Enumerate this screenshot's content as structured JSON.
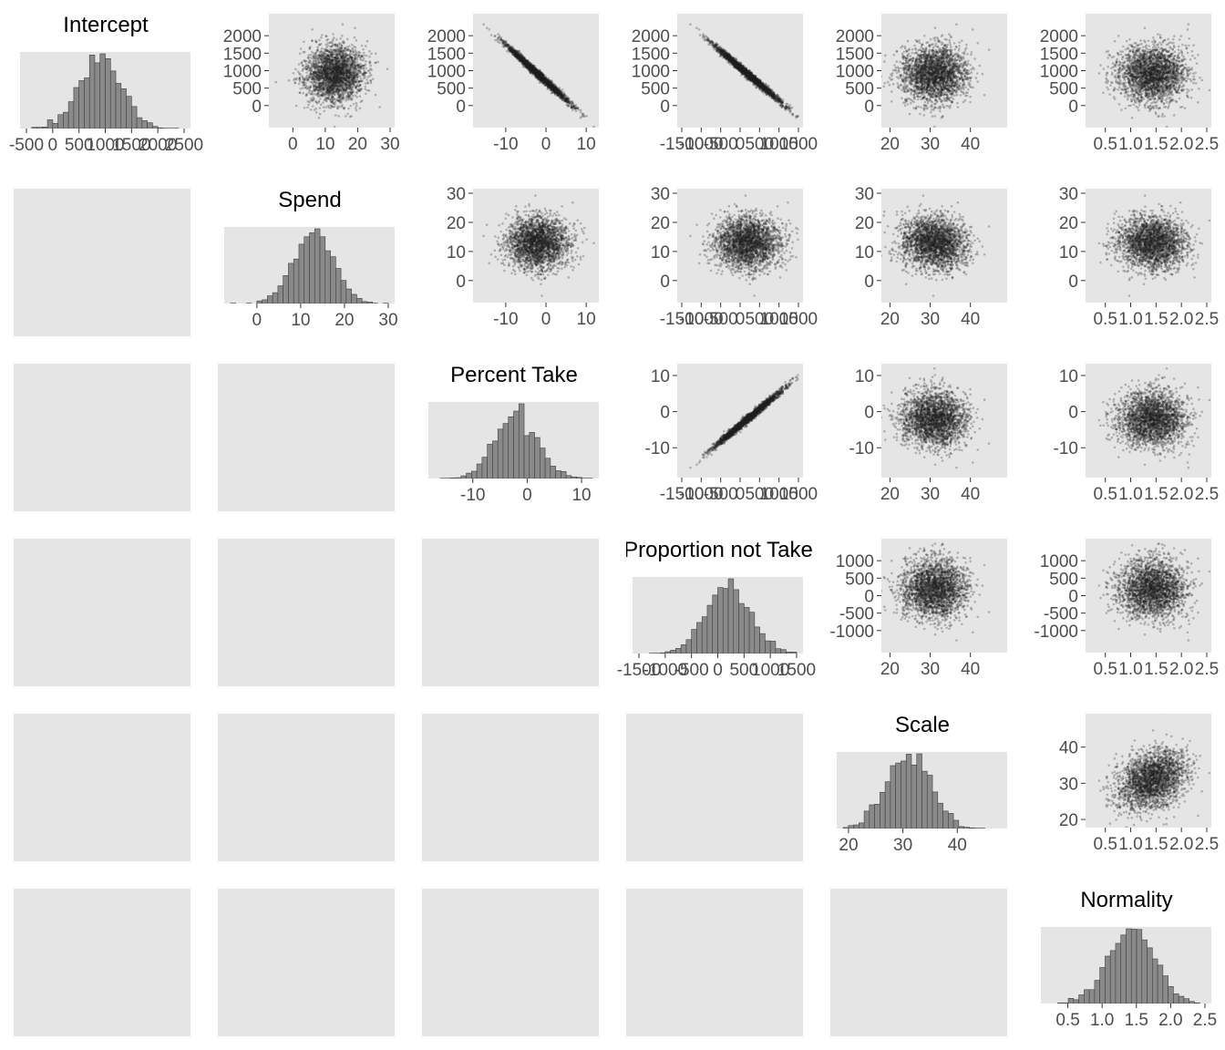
{
  "colors": {
    "panel_bg": "#e5e5e5",
    "bar_fill": "#8a8a8a",
    "bar_stroke": "#404040",
    "point": "#202020",
    "tick_text": "#4d4d4d",
    "title_text": "#000000"
  },
  "chart_data": {
    "type": "pairs-matrix",
    "variables": [
      {
        "key": "intercept",
        "title": "Intercept",
        "mean": 900,
        "sd": 400,
        "range": [
          -500,
          2500
        ],
        "ticks": [
          -500,
          0,
          500,
          1000,
          1500,
          2000,
          2500
        ],
        "tick_labels": [
          "-500",
          "0",
          "500",
          "1000",
          "1500",
          "2000",
          "2500"
        ],
        "scatter_ticks": [
          0,
          500,
          1000,
          1500,
          2000
        ],
        "scatter_tick_labels": [
          "0",
          "500",
          "1000",
          "1500",
          "2000"
        ]
      },
      {
        "key": "spend",
        "title": "Spend",
        "mean": 13,
        "sd": 4.5,
        "range": [
          -6,
          30
        ],
        "ticks": [
          0,
          10,
          20,
          30
        ],
        "tick_labels": [
          "0",
          "10",
          "20",
          "30"
        ],
        "scatter_ticks": [
          0,
          10,
          20,
          30
        ],
        "scatter_tick_labels": [
          "0",
          "10",
          "20",
          "30"
        ]
      },
      {
        "key": "percent_take",
        "title": "Percent Take",
        "mean": -2,
        "sd": 3.8,
        "range": [
          -17,
          12
        ],
        "ticks": [
          -10,
          0,
          10
        ],
        "tick_labels": [
          "-10",
          "0",
          "10"
        ],
        "scatter_ticks": [
          -10,
          0,
          10
        ],
        "scatter_tick_labels": [
          "-10",
          "0",
          "10"
        ]
      },
      {
        "key": "proportion_not_take",
        "title": "Proportion not Take",
        "mean": 200,
        "sd": 420,
        "range": [
          -1500,
          1500
        ],
        "ticks": [
          -1500,
          -1000,
          -500,
          0,
          500,
          1000,
          1500
        ],
        "tick_labels": [
          "-1500",
          "-1000",
          "-500",
          "0",
          "500",
          "1000",
          "1500"
        ],
        "scatter_ticks": [
          -1000,
          -500,
          0,
          500,
          1000
        ],
        "scatter_tick_labels": [
          "-1000",
          "-500",
          "0",
          "500",
          "1000"
        ]
      },
      {
        "key": "scale",
        "title": "Scale",
        "mean": 31,
        "sd": 4,
        "range": [
          19,
          48
        ],
        "ticks": [
          20,
          30,
          40
        ],
        "tick_labels": [
          "20",
          "30",
          "40"
        ],
        "scatter_ticks": [
          20,
          30,
          40
        ],
        "scatter_tick_labels": [
          "20",
          "30",
          "40"
        ]
      },
      {
        "key": "normality",
        "title": "Normality",
        "mean": 1.42,
        "sd": 0.33,
        "range": [
          0.2,
          2.5
        ],
        "ticks": [
          0.5,
          1.0,
          1.5,
          2.0,
          2.5
        ],
        "tick_labels": [
          "0.5",
          "1.0",
          "1.5",
          "2.0",
          "2.5"
        ],
        "scatter_ticks": [
          0.5,
          1.0,
          1.5,
          2.0
        ],
        "scatter_tick_labels": [
          "0.5",
          "1.0",
          "1.5",
          "2.0"
        ]
      }
    ],
    "correlations": [
      [
        1.0,
        0.05,
        -0.99,
        -0.99,
        0.05,
        0.0
      ],
      [
        0.05,
        1.0,
        0.0,
        0.0,
        -0.1,
        -0.05
      ],
      [
        -0.99,
        0.0,
        1.0,
        0.99,
        -0.05,
        0.0
      ],
      [
        -0.99,
        0.0,
        0.99,
        1.0,
        0.0,
        0.0
      ],
      [
        0.05,
        -0.1,
        -0.05,
        0.0,
        1.0,
        0.3
      ],
      [
        0.0,
        -0.05,
        0.0,
        0.0,
        0.3,
        1.0
      ]
    ],
    "diagonal": "histogram",
    "upper": "scatter",
    "lower": "blank",
    "bins": 30,
    "draws": 2400
  }
}
